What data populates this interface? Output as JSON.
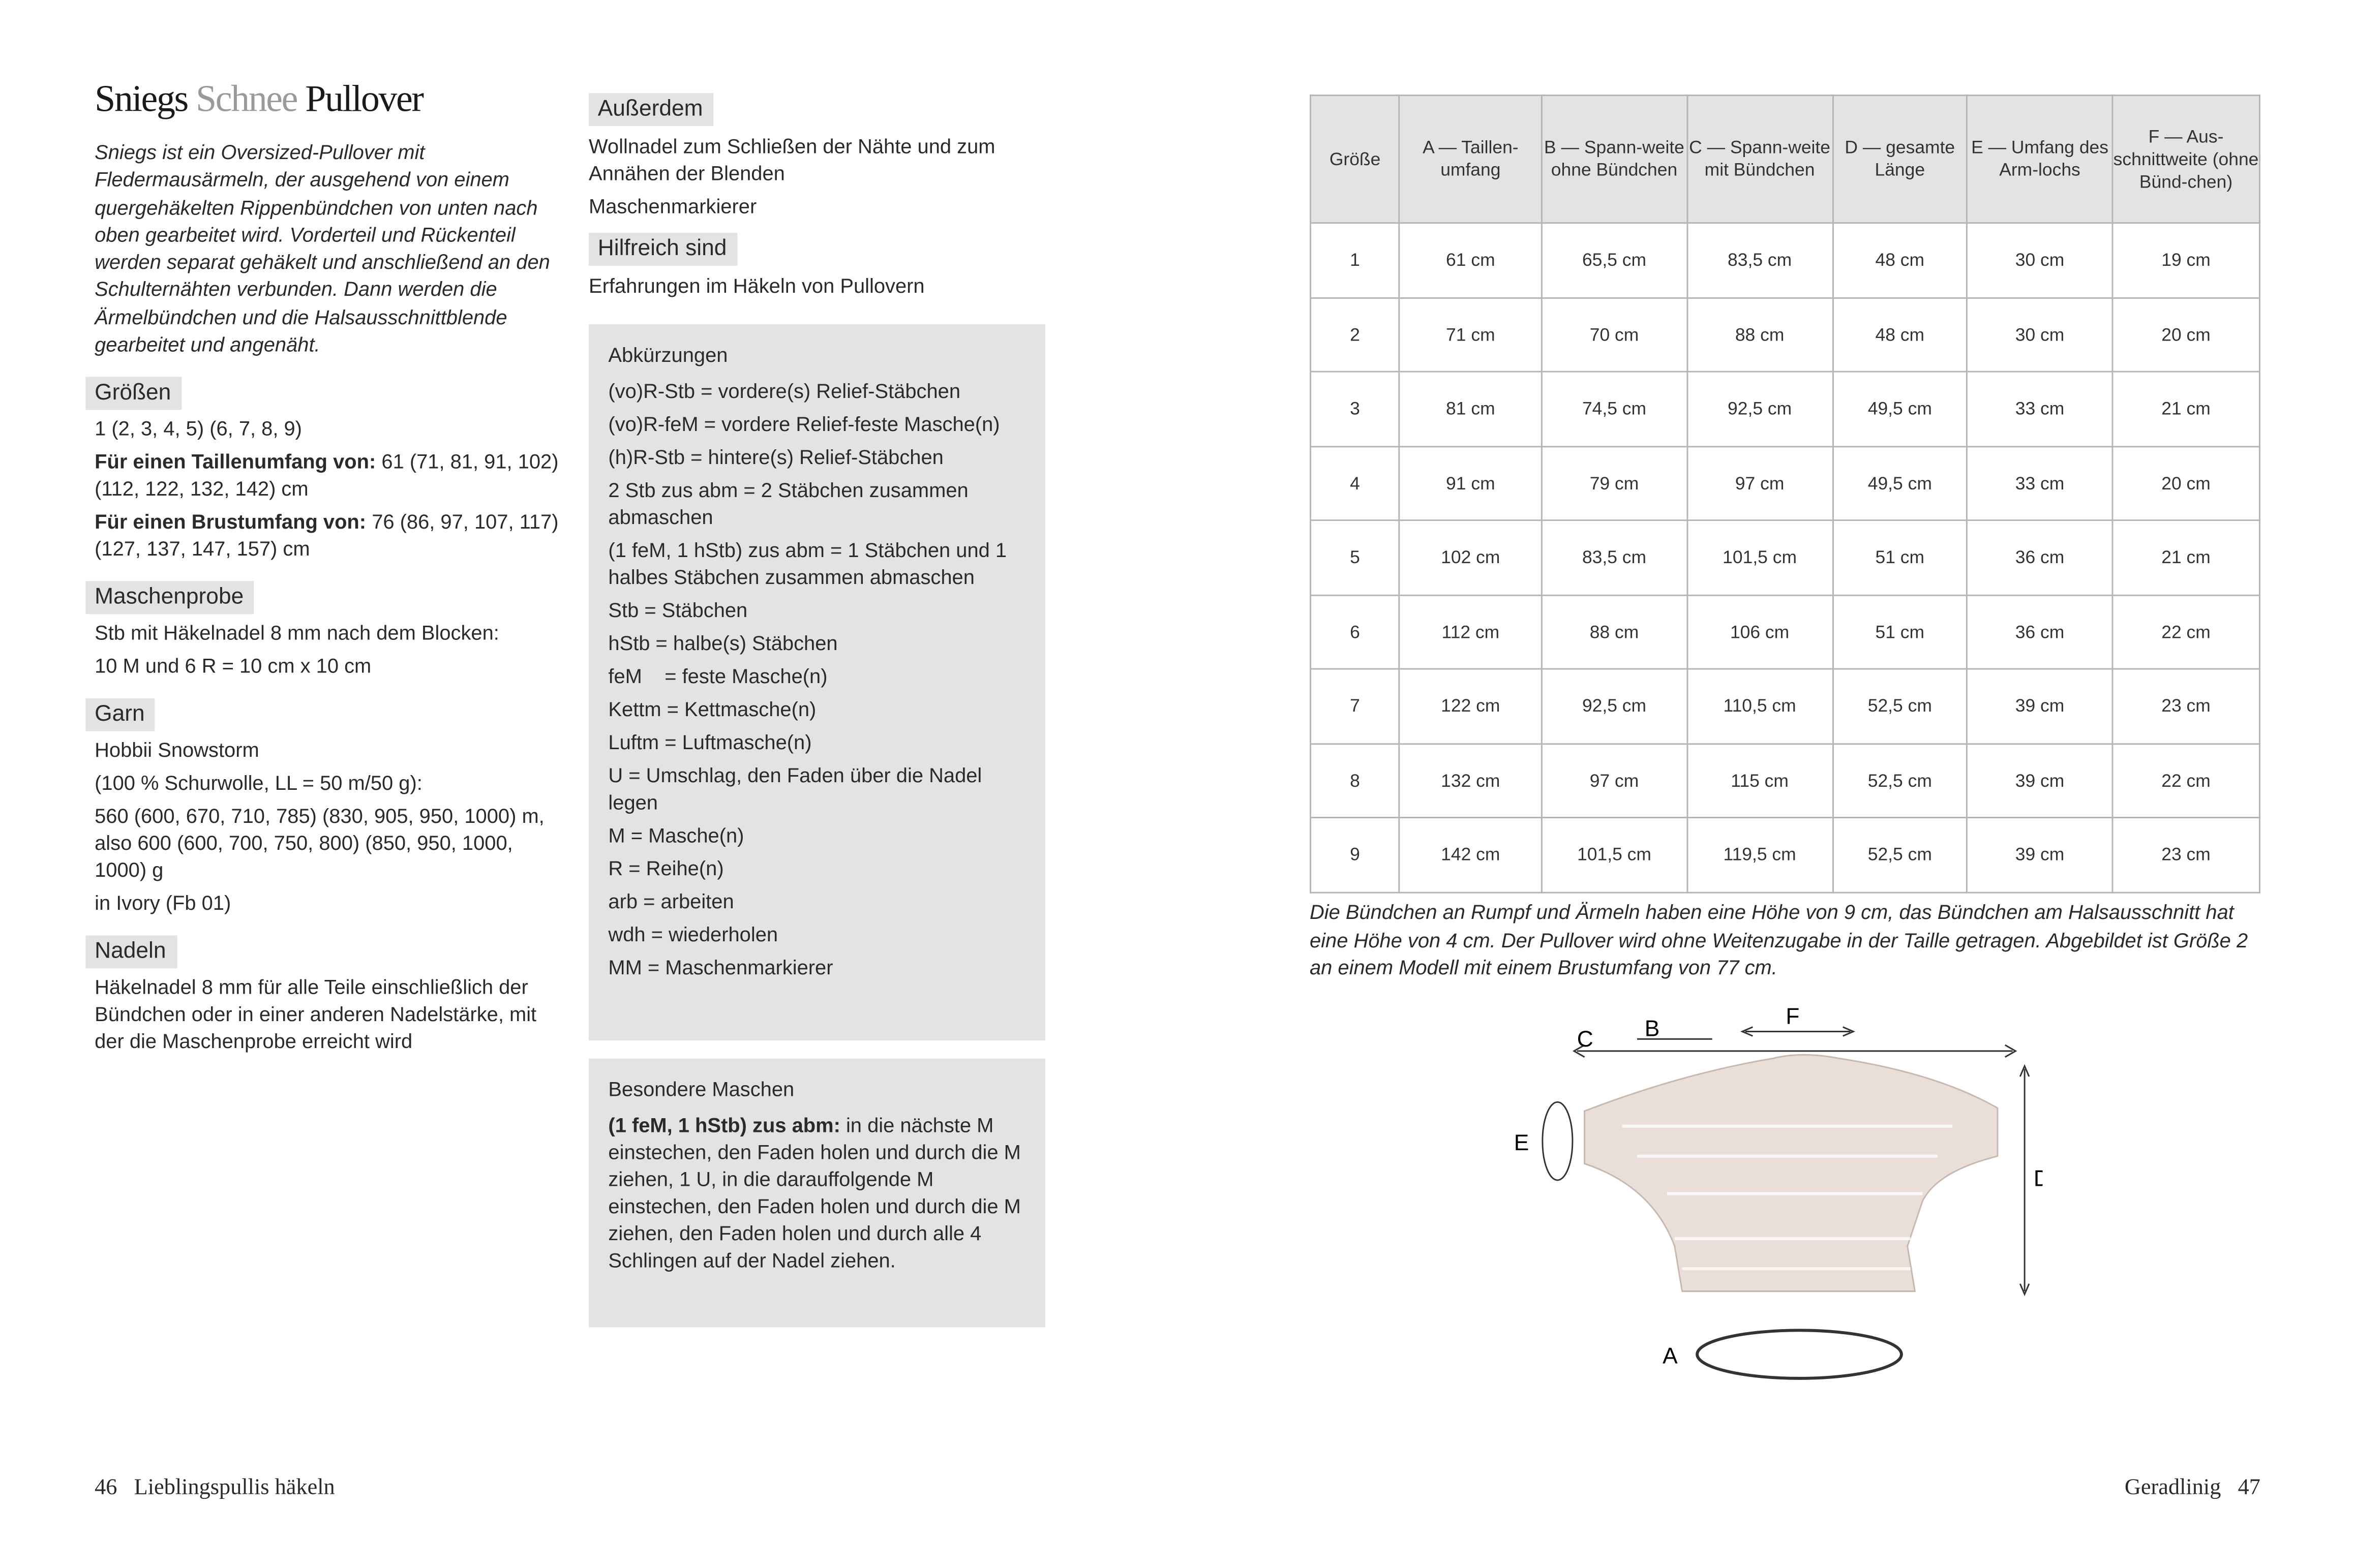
{
  "title": {
    "w1": "Sniegs",
    "w2": "Schnee",
    "w3": "Pullover"
  },
  "intro": "Sniegs ist ein Oversized-Pullover mit Fledermausärmeln, der ausgehend von einem quergehäkelten Rippenbündchen von unten nach oben gearbeitet wird. Vorderteil und Rückenteil werden separat gehäkelt und anschließend an den Schulternähten verbunden. Dann werden die Ärmelbündchen und die Halsausschnittblende gearbeitet und angenäht.",
  "groessen": {
    "heading": "Größen",
    "sizes": "1 (2, 3, 4, 5) (6, 7, 8, 9)",
    "taille_label": "Für einen Taillenumfang von:",
    "taille": " 61 (71, 81, 91, 102) (112, 122, 132, 142) cm",
    "brust_label": "Für einen Brustumfang von:",
    "brust": " 76 (86, 97, 107, 117) (127, 137, 147, 157) cm"
  },
  "maschenprobe": {
    "heading": "Maschenprobe",
    "lines": [
      "Stb mit Häkelnadel 8 mm nach dem Blocken:",
      "10 M und 6 R = 10 cm x 10 cm"
    ]
  },
  "garn": {
    "heading": "Garn",
    "lines": [
      "Hobbii Snowstorm",
      "(100 % Schurwolle, LL = 50 m/50 g):",
      "560 (600, 670, 710, 785) (830, 905, 950, 1000) m, also 600 (600, 700, 750, 800) (850, 950, 1000, 1000) g",
      "in Ivory (Fb 01)"
    ]
  },
  "nadeln": {
    "heading": "Nadeln",
    "text": "Häkelnadel 8 mm für alle Teile einschließlich der Bündchen oder in einer anderen Nadelstärke, mit der die Maschenprobe erreicht wird"
  },
  "ausserdem": {
    "heading": "Außerdem",
    "lines": [
      "Wollnadel zum Schließen der Nähte und zum Annähen der Blenden",
      "Maschenmarkierer"
    ]
  },
  "hilfreich": {
    "heading": "Hilfreich sind",
    "text": "Erfahrungen im Häkeln von Pullovern"
  },
  "abk": {
    "heading": "Abkürzungen",
    "items": [
      "(vo)R-Stb = vordere(s) Relief-Stäbchen",
      "(vo)R-feM = vordere Relief-feste Masche(n)",
      "(h)R-Stb = hintere(s) Relief-Stäbchen",
      "2 Stb zus abm = 2 Stäbchen zusammen abmaschen",
      "(1 feM, 1 hStb) zus abm = 1 Stäbchen und 1 halbes Stäbchen zusammen abmaschen",
      "Stb = Stäbchen",
      "hStb = halbe(s) Stäbchen",
      "feM    = feste Masche(n)",
      "Kettm = Kettmasche(n)",
      "Luftm = Luftmasche(n)",
      "U = Umschlag, den Faden über die Nadel legen",
      "M = Masche(n)",
      "R = Reihe(n)",
      "arb = arbeiten",
      "wdh = wiederholen",
      "MM = Maschenmarkierer"
    ]
  },
  "besondere": {
    "heading": "Besondere Maschen",
    "bold": "(1 feM, 1 hStb) zus abm:",
    "text": " in die nächste M einstechen, den Faden holen und durch die M ziehen, 1 U, in die darauffolgende M einstechen, den Faden holen und durch die M ziehen, den Faden holen und durch alle 4 Schlingen auf der Nadel ziehen."
  },
  "table": {
    "headers": [
      "Größe",
      "A — Taillen-umfang",
      "B — Spann-weite ohne Bündchen",
      "C — Spann-weite mit Bündchen",
      "D — gesamte Länge",
      "E — Umfang des Arm-lochs",
      "F — Aus-schnittweite (ohne Bünd-chen)"
    ],
    "rows": [
      [
        "1",
        "61 cm",
        "65,5 cm",
        "83,5 cm",
        "48 cm",
        "30 cm",
        "19 cm"
      ],
      [
        "2",
        "71 cm",
        "70 cm",
        "88 cm",
        "48 cm",
        "30 cm",
        "20 cm"
      ],
      [
        "3",
        "81 cm",
        "74,5 cm",
        "92,5 cm",
        "49,5 cm",
        "33 cm",
        "21 cm"
      ],
      [
        "4",
        "91 cm",
        "79 cm",
        "97 cm",
        "49,5 cm",
        "33 cm",
        "20 cm"
      ],
      [
        "5",
        "102 cm",
        "83,5 cm",
        "101,5 cm",
        "51 cm",
        "36 cm",
        "21 cm"
      ],
      [
        "6",
        "112 cm",
        "88 cm",
        "106 cm",
        "51 cm",
        "36 cm",
        "22 cm"
      ],
      [
        "7",
        "122 cm",
        "92,5 cm",
        "110,5 cm",
        "52,5 cm",
        "39 cm",
        "23 cm"
      ],
      [
        "8",
        "132 cm",
        "97 cm",
        "115 cm",
        "52,5 cm",
        "39 cm",
        "22 cm"
      ],
      [
        "9",
        "142 cm",
        "101,5 cm",
        "119,5 cm",
        "52,5 cm",
        "39 cm",
        "23 cm"
      ]
    ]
  },
  "caption": "Die Bündchen an Rumpf und Ärmeln haben eine Höhe von 9 cm, das Bündchen am Halsausschnitt hat eine Höhe von 4 cm. Der Pullover wird ohne Weitenzugabe in der Taille getragen. Abgebildet ist Größe 2 an einem Modell mit einem Brustumfang von 77 cm.",
  "sketch": {
    "labels": {
      "a": "A",
      "b": "B",
      "c": "C",
      "d": "D",
      "e": "E",
      "f": "F"
    }
  },
  "footer": {
    "left_page": "46",
    "left_title": "Lieblingspullis häkeln",
    "right_title": "Geradlinig",
    "right_page": "47"
  }
}
